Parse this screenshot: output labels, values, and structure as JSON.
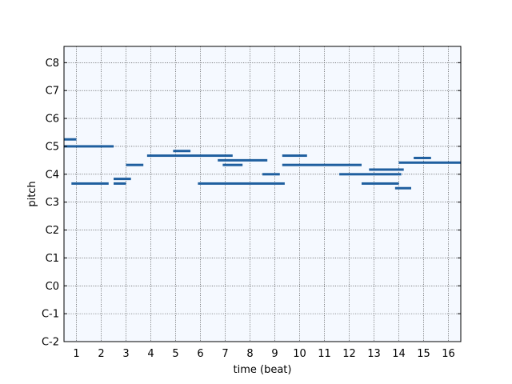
{
  "chart_data": {
    "type": "pianoroll",
    "xlabel": "time (beat)",
    "ylabel": "pitch",
    "x_ticks": [
      1,
      2,
      3,
      4,
      5,
      6,
      7,
      8,
      9,
      10,
      11,
      12,
      13,
      14,
      15,
      16
    ],
    "y_ticks": [
      {
        "label": "C-2",
        "pitch": 0
      },
      {
        "label": "C-1",
        "pitch": 12
      },
      {
        "label": "C0",
        "pitch": 24
      },
      {
        "label": "C1",
        "pitch": 36
      },
      {
        "label": "C2",
        "pitch": 48
      },
      {
        "label": "C3",
        "pitch": 60
      },
      {
        "label": "C4",
        "pitch": 72
      },
      {
        "label": "C5",
        "pitch": 84
      },
      {
        "label": "C6",
        "pitch": 96
      },
      {
        "label": "C7",
        "pitch": 108
      },
      {
        "label": "C8",
        "pitch": 120
      }
    ],
    "xlim": [
      0.5,
      16.5
    ],
    "ylim": [
      0,
      127
    ],
    "grid": true,
    "background_color": "#f5f9ff",
    "note_color": "#1f5f9f",
    "notes": [
      {
        "start": 0.5,
        "end": 1.0,
        "pitch": 87
      },
      {
        "start": 0.5,
        "end": 2.5,
        "pitch": 84
      },
      {
        "start": 0.8,
        "end": 2.3,
        "pitch": 68
      },
      {
        "start": 2.5,
        "end": 3.2,
        "pitch": 70
      },
      {
        "start": 2.5,
        "end": 3.0,
        "pitch": 68
      },
      {
        "start": 3.0,
        "end": 3.7,
        "pitch": 76
      },
      {
        "start": 3.85,
        "end": 7.3,
        "pitch": 80
      },
      {
        "start": 4.9,
        "end": 5.6,
        "pitch": 82
      },
      {
        "start": 6.7,
        "end": 8.7,
        "pitch": 78
      },
      {
        "start": 6.9,
        "end": 7.7,
        "pitch": 76
      },
      {
        "start": 5.9,
        "end": 9.4,
        "pitch": 68
      },
      {
        "start": 8.5,
        "end": 9.2,
        "pitch": 72
      },
      {
        "start": 9.3,
        "end": 10.3,
        "pitch": 80
      },
      {
        "start": 9.3,
        "end": 12.5,
        "pitch": 76
      },
      {
        "start": 11.6,
        "end": 14.1,
        "pitch": 72
      },
      {
        "start": 12.8,
        "end": 14.2,
        "pitch": 74
      },
      {
        "start": 12.5,
        "end": 14.0,
        "pitch": 68
      },
      {
        "start": 13.85,
        "end": 14.5,
        "pitch": 66
      },
      {
        "start": 14.0,
        "end": 16.6,
        "pitch": 77
      },
      {
        "start": 14.6,
        "end": 15.3,
        "pitch": 79
      }
    ]
  }
}
